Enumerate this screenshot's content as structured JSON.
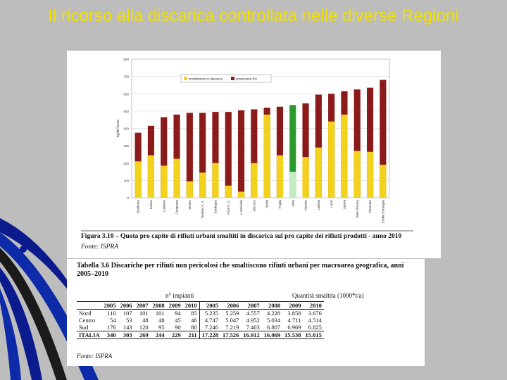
{
  "slide": {
    "title": "Il ricorso alla discarica controllata nelle diverse Regioni"
  },
  "figure": {
    "caption": "Figura 3.10 – Quota pro capite di rifiuti urbani smaltiti in discarica sul pro capite dei rifiuti prodotti - anno 2010",
    "source": "Fonte: ISPRA"
  },
  "chart_data": {
    "type": "bar",
    "ylabel": "kg/ab*anno",
    "ylim": [
      0,
      800
    ],
    "yticks": [
      0,
      100,
      200,
      300,
      400,
      500,
      600,
      700,
      800
    ],
    "legend": {
      "placement": "top-center",
      "entries": [
        "smaltimento in discarica",
        "produzione RU"
      ]
    },
    "categories": [
      "Basilicata",
      "Molise",
      "Calabria",
      "Campania",
      "Veneto",
      "Trentino A. A.",
      "Sardegna",
      "Friuli V. G.",
      "Lombardia",
      "Abruzzo",
      "Sicilia",
      "Puglia",
      "Italia",
      "Marche",
      "Umbria",
      "Lazio",
      "Liguria",
      "Valle d'Aosta",
      "Piemonte",
      "Emilia Romagna"
    ],
    "series": [
      {
        "name": "smaltimento in discarica",
        "values": [
          210,
          245,
          185,
          225,
          95,
          145,
          200,
          70,
          35,
          200,
          480,
          245,
          150,
          235,
          290,
          440,
          480,
          270,
          265,
          190
        ]
      },
      {
        "name": "produzione RU",
        "values": [
          375,
          415,
          465,
          480,
          490,
          490,
          495,
          495,
          505,
          510,
          520,
          525,
          535,
          545,
          595,
          600,
          615,
          625,
          635,
          680
        ]
      }
    ],
    "highlight_category": "Italia",
    "colors": {
      "landfill": "#f2d21c",
      "production": "#8b1a1a",
      "highlight_landfill": "#c4ecc4",
      "highlight_production": "#2e9a2e"
    },
    "grid": true
  },
  "table": {
    "caption": "Tabella 3.6 Discariche per rifiuti non pericolosi che smaltiscono rifiuti urbani per macroarea geografica, anni 2005–2010",
    "group_impianti": "n° impianti",
    "group_quantita": "Quantità smaltita (1000*t/a)",
    "years": [
      "2005",
      "2006",
      "2007",
      "2008",
      "2009",
      "2010",
      "2005",
      "2006",
      "2007",
      "2008",
      "2009",
      "2010"
    ],
    "rows": [
      {
        "area": "Nord",
        "values": [
          "110",
          "107",
          "101",
          "101",
          "94",
          "85",
          "5.235",
          "5.259",
          "4.557",
          "4.228",
          "3.858",
          "3.676"
        ]
      },
      {
        "area": "Centro",
        "values": [
          "54",
          "53",
          "48",
          "48",
          "45",
          "46",
          "4.747",
          "5.047",
          "4.952",
          "5.034",
          "4.711",
          "4.514"
        ]
      },
      {
        "area": "Sud",
        "values": [
          "176",
          "143",
          "120",
          "95",
          "90",
          "80",
          "7.246",
          "7.219",
          "7.403",
          "6.807",
          "6.969",
          "6.825"
        ]
      },
      {
        "area": "ITALIA",
        "values": [
          "340",
          "303",
          "269",
          "244",
          "229",
          "211",
          "17.228",
          "17.526",
          "16.912",
          "16.069",
          "15.538",
          "15.015"
        ]
      }
    ],
    "source": "Fonte: ISPRA"
  }
}
